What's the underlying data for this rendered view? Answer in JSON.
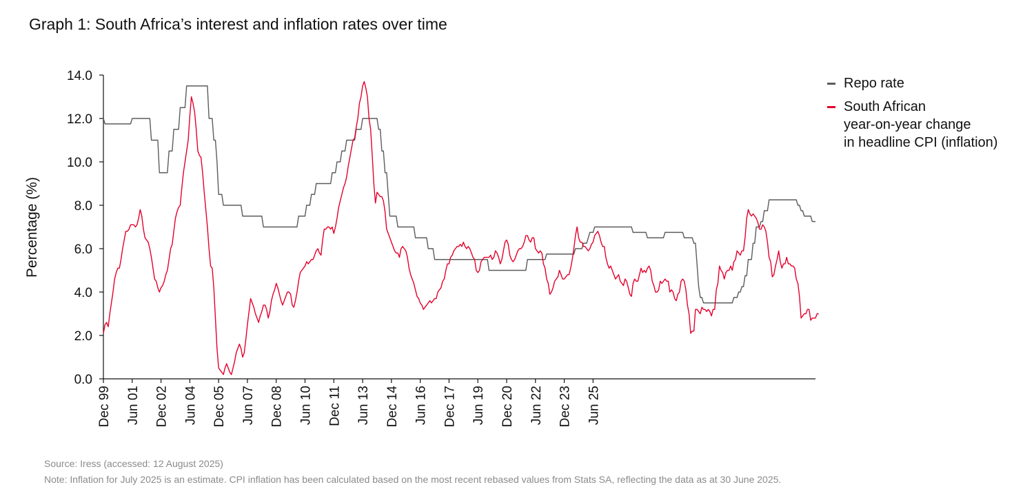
{
  "title": "Graph 1: South Africa’s interest and inflation rates over time",
  "legend": {
    "repo": "Repo rate",
    "cpi_lines": [
      "South African",
      "year-on-year change",
      "in headline CPI (inflation)"
    ]
  },
  "footnotes": {
    "source": "Source: Iress (accessed: 12 August 2025)",
    "note": "Note: Inflation for July 2025 is an estimate. CPI inflation has been calculated based on the most recent rebased values from Stats SA, reflecting the data as at 30 June 2025."
  },
  "colors": {
    "repo": "#5b5b5b",
    "cpi": "#e3002b",
    "axis": "#111111"
  },
  "chart_data": {
    "type": "line",
    "ylabel": "Percentage (%)",
    "ylim": [
      0,
      14
    ],
    "yticks": [
      "0.0",
      "2.0",
      "4.0",
      "6.0",
      "8.0",
      "10.0",
      "12.0",
      "14.0"
    ],
    "xticks": [
      "Dec 99",
      "Jun 01",
      "Dec 02",
      "Jun 04",
      "Dec 05",
      "Jun 07",
      "Dec 08",
      "Jun 10",
      "Dec 11",
      "Jun 13",
      "Dec 14",
      "Jun 16",
      "Dec 17",
      "Jun 19",
      "Dec 20",
      "Jun 22",
      "Dec 23",
      "Jun 25"
    ],
    "x_start": "Dec 1999",
    "x_end": "Jul 2025",
    "series": [
      {
        "name": "Repo rate",
        "values": [
          12.0,
          11.75,
          11.75,
          11.75,
          11.75,
          11.75,
          11.75,
          11.75,
          11.75,
          11.75,
          11.75,
          11.75,
          11.75,
          11.75,
          11.75,
          11.75,
          11.75,
          11.75,
          12.0,
          12.0,
          12.0,
          12.0,
          12.0,
          12.0,
          12.0,
          12.0,
          12.0,
          12.0,
          12.0,
          12.0,
          11.0,
          11.0,
          11.0,
          11.0,
          11.0,
          9.5,
          9.5,
          9.5,
          9.5,
          9.5,
          9.5,
          10.5,
          10.5,
          10.5,
          11.5,
          11.5,
          11.5,
          11.5,
          12.5,
          12.5,
          12.5,
          12.5,
          13.5,
          13.5,
          13.5,
          13.5,
          13.5,
          13.5,
          13.5,
          13.5,
          13.5,
          13.5,
          13.5,
          13.5,
          13.5,
          13.5,
          12.0,
          12.0,
          12.0,
          11.0,
          11.0,
          10.0,
          8.5,
          8.5,
          8.5,
          8.0,
          8.0,
          8.0,
          8.0,
          8.0,
          8.0,
          8.0,
          8.0,
          8.0,
          8.0,
          8.0,
          8.0,
          7.5,
          7.5,
          7.5,
          7.5,
          7.5,
          7.5,
          7.5,
          7.5,
          7.5,
          7.5,
          7.5,
          7.5,
          7.5,
          7.0,
          7.0,
          7.0,
          7.0,
          7.0,
          7.0,
          7.0,
          7.0,
          7.0,
          7.0,
          7.0,
          7.0,
          7.0,
          7.0,
          7.0,
          7.0,
          7.0,
          7.0,
          7.0,
          7.0,
          7.0,
          7.0,
          7.5,
          7.5,
          7.5,
          7.5,
          7.5,
          8.0,
          8.0,
          8.0,
          8.5,
          8.5,
          8.5,
          9.0,
          9.0,
          9.0,
          9.0,
          9.0,
          9.0,
          9.0,
          9.0,
          9.0,
          9.0,
          9.5,
          9.5,
          9.5,
          10.0,
          10.0,
          10.0,
          10.5,
          10.5,
          10.5,
          11.0,
          11.0,
          11.0,
          11.0,
          11.0,
          11.0,
          11.5,
          11.5,
          11.5,
          11.5,
          12.0,
          12.0,
          12.0,
          12.0,
          12.0,
          12.0,
          12.0,
          12.0,
          12.0,
          12.0,
          11.5,
          11.5,
          10.5,
          10.5,
          9.5,
          9.5,
          8.5,
          7.5,
          7.5,
          7.5,
          7.5,
          7.5,
          7.0,
          7.0,
          7.0,
          7.0,
          7.0,
          7.0,
          7.0,
          7.0,
          7.0,
          7.0,
          7.0,
          6.5,
          6.5,
          6.5,
          6.5,
          6.5,
          6.5,
          6.5,
          6.5,
          6.0,
          6.0,
          6.0,
          6.0,
          5.5,
          5.5,
          5.5,
          5.5,
          5.5,
          5.5,
          5.5,
          5.5,
          5.5,
          5.5,
          5.5,
          5.5,
          5.5,
          5.5,
          5.5,
          5.5,
          5.5,
          5.5,
          5.5,
          5.5,
          5.5,
          5.5,
          5.5,
          5.5,
          5.5,
          5.5,
          5.5,
          5.5,
          5.5,
          5.5,
          5.5,
          5.5,
          5.5,
          5.5,
          5.0,
          5.0,
          5.0,
          5.0,
          5.0,
          5.0,
          5.0,
          5.0,
          5.0,
          5.0,
          5.0,
          5.0,
          5.0,
          5.0,
          5.0,
          5.0,
          5.0,
          5.0,
          5.0,
          5.0,
          5.0,
          5.0,
          5.0,
          5.0,
          5.5,
          5.5,
          5.5,
          5.5,
          5.5,
          5.5,
          5.5,
          5.5,
          5.5,
          5.5,
          5.5,
          5.5,
          5.75,
          5.75,
          5.75,
          5.75,
          5.75,
          5.75,
          5.75,
          5.75,
          5.75,
          5.75,
          5.75,
          5.75,
          5.75,
          5.75,
          5.75,
          5.75,
          5.75,
          5.75,
          6.0,
          6.0,
          6.0,
          6.0,
          6.0,
          6.25,
          6.25,
          6.25,
          6.5,
          6.75,
          6.75,
          6.75,
          7.0,
          7.0,
          7.0,
          7.0,
          7.0,
          7.0,
          7.0,
          7.0,
          7.0,
          7.0,
          7.0,
          7.0,
          7.0,
          7.0,
          7.0,
          7.0,
          7.0,
          7.0,
          7.0,
          7.0,
          7.0,
          7.0,
          7.0,
          7.0,
          6.75,
          6.75,
          6.75,
          6.75,
          6.75,
          6.75,
          6.75,
          6.75,
          6.75,
          6.5,
          6.5,
          6.5,
          6.5,
          6.5,
          6.5,
          6.5,
          6.5,
          6.5,
          6.5,
          6.5,
          6.75,
          6.75,
          6.75,
          6.75,
          6.75,
          6.75,
          6.75,
          6.75,
          6.75,
          6.75,
          6.75,
          6.75,
          6.5,
          6.5,
          6.5,
          6.5,
          6.5,
          6.5,
          6.25,
          6.25,
          5.25,
          4.25,
          3.75,
          3.75,
          3.5,
          3.5,
          3.5,
          3.5,
          3.5,
          3.5,
          3.5,
          3.5,
          3.5,
          3.5,
          3.5,
          3.5,
          3.5,
          3.5,
          3.5,
          3.5,
          3.5,
          3.5,
          3.5,
          3.75,
          3.75,
          3.75,
          4.0,
          4.0,
          4.25,
          4.25,
          4.75,
          4.75,
          5.5,
          5.5,
          5.5,
          6.25,
          6.25,
          7.0,
          7.0,
          7.0,
          7.25,
          7.25,
          7.75,
          7.75,
          7.75,
          8.25,
          8.25,
          8.25,
          8.25,
          8.25,
          8.25,
          8.25,
          8.25,
          8.25,
          8.25,
          8.25,
          8.25,
          8.25,
          8.25,
          8.25,
          8.25,
          8.25,
          8.25,
          8.0,
          8.0,
          7.75,
          7.75,
          7.5,
          7.5,
          7.5,
          7.5,
          7.5,
          7.25,
          7.25,
          7.25
        ]
      },
      {
        "name": "South African year-on-year change in headline CPI (inflation)",
        "values": [
          2.1,
          2.5,
          2.6,
          2.4,
          3.0,
          3.5,
          4.0,
          4.6,
          4.9,
          5.1,
          5.1,
          5.5,
          6.0,
          6.4,
          6.8,
          6.8,
          6.9,
          7.1,
          7.1,
          7.1,
          7.0,
          7.1,
          7.4,
          7.8,
          7.5,
          6.9,
          6.5,
          6.4,
          6.3,
          6.0,
          5.6,
          5.1,
          4.6,
          4.5,
          4.2,
          4.0,
          4.2,
          4.3,
          4.5,
          4.8,
          5.0,
          5.5,
          6.0,
          6.2,
          6.8,
          7.4,
          7.7,
          7.9,
          8.0,
          8.8,
          9.5,
          10.0,
          10.5,
          11.0,
          12.1,
          13.0,
          12.7,
          12.3,
          11.5,
          10.5,
          10.3,
          10.2,
          9.5,
          8.6,
          7.8,
          7.0,
          6.0,
          5.2,
          5.1,
          4.2,
          2.8,
          1.4,
          0.5,
          0.4,
          0.3,
          0.2,
          0.5,
          0.7,
          0.5,
          0.3,
          0.2,
          0.5,
          0.8,
          1.2,
          1.4,
          1.6,
          1.4,
          1.0,
          1.2,
          1.8,
          2.5,
          3.1,
          3.7,
          3.5,
          3.3,
          3.0,
          2.8,
          2.6,
          2.9,
          3.1,
          3.4,
          3.4,
          3.2,
          2.8,
          3.1,
          3.6,
          3.9,
          4.1,
          4.4,
          4.2,
          3.9,
          3.6,
          3.4,
          3.6,
          3.8,
          4.0,
          4.0,
          3.9,
          3.4,
          3.3,
          3.6,
          4.0,
          4.5,
          4.9,
          5.0,
          5.1,
          5.2,
          5.4,
          5.3,
          5.4,
          5.5,
          5.5,
          5.7,
          5.9,
          6.0,
          5.8,
          5.7,
          6.4,
          6.9,
          6.9,
          7.0,
          7.0,
          6.9,
          7.0,
          6.7,
          7.0,
          7.4,
          7.9,
          8.2,
          8.5,
          8.8,
          9.0,
          9.3,
          9.8,
          10.2,
          10.6,
          11.0,
          11.1,
          11.6,
          12.0,
          12.7,
          13.0,
          13.5,
          13.7,
          13.4,
          13.0,
          12.0,
          11.5,
          10.3,
          9.0,
          8.1,
          8.6,
          8.5,
          8.4,
          8.4,
          8.2,
          7.7,
          6.9,
          6.7,
          6.5,
          6.3,
          6.1,
          5.9,
          5.8,
          5.8,
          5.6,
          6.0,
          6.1,
          6.0,
          5.9,
          5.6,
          5.1,
          4.8,
          4.6,
          4.4,
          4.1,
          3.8,
          3.7,
          3.5,
          3.4,
          3.2,
          3.3,
          3.4,
          3.5,
          3.6,
          3.5,
          3.6,
          3.7,
          3.7,
          4.0,
          4.1,
          4.2,
          4.5,
          4.6,
          5.0,
          5.3,
          5.3,
          5.6,
          5.7,
          5.9,
          6.0,
          6.1,
          6.1,
          6.2,
          6.1,
          6.3,
          6.1,
          6.0,
          6.1,
          6.0,
          5.8,
          5.6,
          5.5,
          5.0,
          4.9,
          5.0,
          5.4,
          5.5,
          5.6,
          5.6,
          5.6,
          5.6,
          5.7,
          5.5,
          5.6,
          5.9,
          5.8,
          5.6,
          5.3,
          5.5,
          5.9,
          6.3,
          6.4,
          6.2,
          5.7,
          5.5,
          5.4,
          5.5,
          5.7,
          5.9,
          6.0,
          6.0,
          6.1,
          6.3,
          6.6,
          6.6,
          6.4,
          6.3,
          6.5,
          6.5,
          6.0,
          5.9,
          5.8,
          5.9,
          5.8,
          5.3,
          5.1,
          4.6,
          4.4,
          3.9,
          4.0,
          4.2,
          4.5,
          4.6,
          4.7,
          5.0,
          4.8,
          4.6,
          4.6,
          4.7,
          4.8,
          4.8,
          5.1,
          5.5,
          6.0,
          6.6,
          7.0,
          6.5,
          6.3,
          6.3,
          6.1,
          6.1,
          6.0,
          5.9,
          6.0,
          6.2,
          6.3,
          6.6,
          6.7,
          6.8,
          6.6,
          6.3,
          6.1,
          6.1,
          5.6,
          5.3,
          5.1,
          5.2,
          5.0,
          4.8,
          4.6,
          4.7,
          4.8,
          4.5,
          4.4,
          4.3,
          4.6,
          4.5,
          4.2,
          3.9,
          3.8,
          4.4,
          4.6,
          4.5,
          4.5,
          4.8,
          5.1,
          4.9,
          5.0,
          4.9,
          5.1,
          5.2,
          5.0,
          4.5,
          4.3,
          4.0,
          4.0,
          4.1,
          4.5,
          4.4,
          4.5,
          4.6,
          4.5,
          4.5,
          4.0,
          4.1,
          4.0,
          3.7,
          3.6,
          3.9,
          4.0,
          4.5,
          4.6,
          4.5,
          4.1,
          3.4,
          3.0,
          2.1,
          2.2,
          2.2,
          3.2,
          3.2,
          3.1,
          3.0,
          3.3,
          3.2,
          3.2,
          3.1,
          3.2,
          3.1,
          2.9,
          3.2,
          3.2,
          4.1,
          4.4,
          5.2,
          5.0,
          4.9,
          4.6,
          4.9,
          5.0,
          5.0,
          5.2,
          5.0,
          5.4,
          5.5,
          5.9,
          5.8,
          5.7,
          5.9,
          5.9,
          6.5,
          7.4,
          7.8,
          7.6,
          7.5,
          7.6,
          7.5,
          7.4,
          7.2,
          6.9,
          6.9,
          7.1,
          7.0,
          6.8,
          6.3,
          5.6,
          5.4,
          4.7,
          4.8,
          5.2,
          5.5,
          5.9,
          5.4,
          5.1,
          5.3,
          5.3,
          5.6,
          5.3,
          5.3,
          5.2,
          5.2,
          5.1,
          4.6,
          4.4,
          3.8,
          2.8,
          2.9,
          3.0,
          3.0,
          3.2,
          3.2,
          2.7,
          2.8,
          2.8,
          2.8,
          3.0,
          3.0
        ]
      }
    ]
  }
}
